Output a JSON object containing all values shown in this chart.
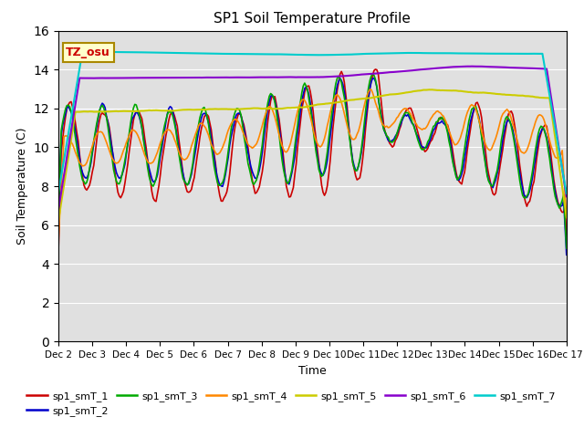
{
  "title": "SP1 Soil Temperature Profile",
  "xlabel": "Time",
  "ylabel": "Soil Temperature (C)",
  "ylim": [
    0,
    16
  ],
  "yticks": [
    0,
    2,
    4,
    6,
    8,
    10,
    12,
    14,
    16
  ],
  "xtick_labels": [
    "Dec 2",
    "Dec 3",
    "Dec 4",
    "Dec 5",
    "Dec 6",
    "Dec 7",
    "Dec 8",
    "Dec 9",
    "Dec 10",
    "Dec 11",
    "Dec 12",
    "Dec 13",
    "Dec 14",
    "Dec 15",
    "Dec 16",
    "Dec 17"
  ],
  "bg_color": "#e0e0e0",
  "annotation_text": "TZ_osu",
  "annotation_bg": "#ffffcc",
  "annotation_border": "#aa8800",
  "series_colors": {
    "sp1_smT_1": "#cc0000",
    "sp1_smT_2": "#0000cc",
    "sp1_smT_3": "#00aa00",
    "sp1_smT_4": "#ff8800",
    "sp1_smT_5": "#cccc00",
    "sp1_smT_6": "#8800cc",
    "sp1_smT_7": "#00cccc"
  },
  "figsize": [
    6.4,
    4.8
  ],
  "dpi": 100
}
